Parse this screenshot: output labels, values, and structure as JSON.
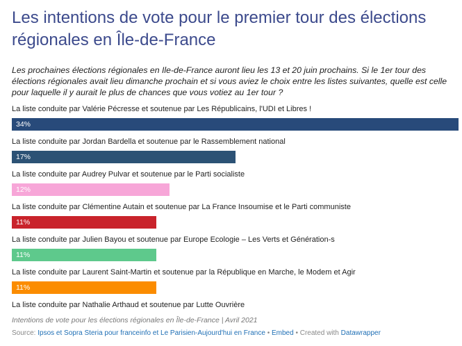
{
  "chart_data": {
    "type": "bar",
    "title": "Les intentions de vote pour le premier tour des élections régionales en Île-de-France",
    "subtitle": "Les prochaines élections régionales en Ile-de-France auront lieu les 13 et 20 juin prochains. Si le 1er tour des élections régionales avait lieu dimanche prochain et si vous aviez le choix entre les listes suivantes, quelle est celle pour laquelle il y aurait le plus de chances que vous votiez au 1er tour ?",
    "categories": [
      "La liste conduite par Valérie Pécresse et soutenue par Les Républicains, l'UDI et Libres !",
      "La liste conduite par Jordan Bardella et soutenue par le Rassemblement national",
      "La liste conduite par Audrey Pulvar et soutenue par le Parti socialiste",
      "La liste conduite par Clémentine Autain et soutenue par La France Insoumise et le Parti communiste",
      "La liste conduite par Julien Bayou et soutenue par Europe Ecologie – Les Verts et Génération-s",
      "La liste conduite par Laurent Saint-Martin et soutenue par la République en Marche, le Modem et Agir",
      "La liste conduite par Nathalie Arthaud et soutenue par Lutte Ouvrière"
    ],
    "values": [
      34,
      17,
      12,
      11,
      11,
      11,
      null
    ],
    "value_labels": [
      "34%",
      "17%",
      "12%",
      "11%",
      "11%",
      "11%",
      null
    ],
    "colors": [
      "#284a7a",
      "#2c5275",
      "#f7a6d8",
      "#c9232b",
      "#5ec98c",
      "#fb8c00",
      null
    ],
    "notes": "Intentions de vote pour les élections régionales en Île-de-France | Avril 2021",
    "source": {
      "label": "Source:",
      "text": "Ipsos et Sopra Steria pour franceinfo et Le Parisien-Aujourd'hui en France",
      "sep": "•",
      "embed": "Embed",
      "created": "• Created with",
      "tool": "Datawrapper"
    }
  }
}
